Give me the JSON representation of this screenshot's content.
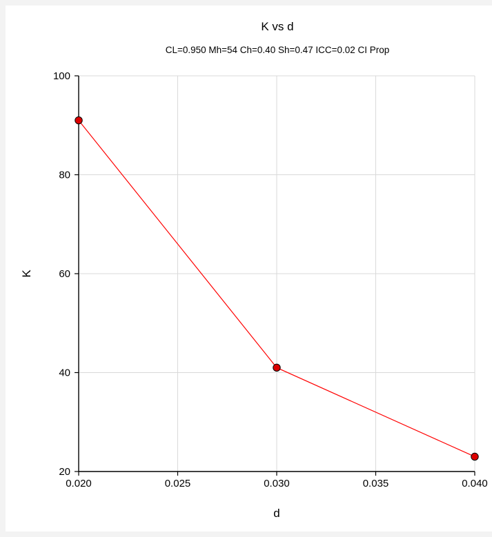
{
  "chart_data": {
    "type": "line",
    "title": "K vs d",
    "subtitle": "CL=0.950 Mh=54 Ch=0.40 Sh=0.47 ICC=0.02 CI Prop",
    "xlabel": "d",
    "ylabel": "K",
    "xlim": [
      0.02,
      0.04
    ],
    "ylim": [
      20,
      100
    ],
    "xticks": [
      0.02,
      0.025,
      0.03,
      0.035,
      0.04
    ],
    "xtick_labels": [
      "0.020",
      "0.025",
      "0.030",
      "0.035",
      "0.040"
    ],
    "yticks": [
      20,
      40,
      60,
      80,
      100
    ],
    "ytick_labels": [
      "20",
      "40",
      "60",
      "80",
      "100"
    ],
    "grid": true,
    "series": [
      {
        "x": [
          0.02,
          0.03,
          0.04
        ],
        "y": [
          91,
          41,
          23
        ],
        "color": "#ff0000",
        "marker_fill": "#dd0000",
        "marker": "circle"
      }
    ]
  }
}
